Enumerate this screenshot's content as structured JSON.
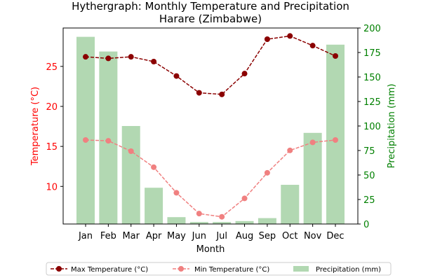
{
  "chart_data": {
    "type": "bar",
    "title": "Hythergraph: Monthly Temperature and Precipitation",
    "subtitle": "Harare (Zimbabwe)",
    "xlabel": "Month",
    "ylabel_left": "Temperature (°C)",
    "ylabel_right": "Precipitation (mm)",
    "categories": [
      "Jan",
      "Feb",
      "Mar",
      "Apr",
      "May",
      "Jun",
      "Jul",
      "Aug",
      "Sep",
      "Oct",
      "Nov",
      "Dec"
    ],
    "y_left_ticks": [
      "10",
      "15",
      "20",
      "25"
    ],
    "y_right_ticks": [
      "0",
      "25",
      "50",
      "75",
      "100",
      "125",
      "150",
      "175",
      "200"
    ],
    "ylim_left": [
      5.3,
      29.8
    ],
    "ylim_right": [
      0,
      200
    ],
    "grid": false,
    "legend_position": "bottom",
    "series": [
      {
        "name": "Precipitation (mm)",
        "type": "bar",
        "axis": "right",
        "color": "#b2d8b2",
        "values": [
          191,
          176,
          100,
          37,
          7,
          2,
          2,
          3,
          6,
          40,
          93,
          183
        ]
      },
      {
        "name": "Max Temperature (°C)",
        "type": "line",
        "axis": "left",
        "color": "#8b0000",
        "values": [
          26.2,
          26.0,
          26.2,
          25.6,
          23.8,
          21.7,
          21.5,
          24.1,
          28.4,
          28.8,
          27.6,
          26.3
        ]
      },
      {
        "name": "Min Temperature (°C)",
        "type": "line",
        "axis": "left",
        "color": "#f08080",
        "values": [
          15.8,
          15.7,
          14.4,
          12.4,
          9.2,
          6.6,
          6.2,
          8.5,
          11.7,
          14.5,
          15.5,
          15.8
        ]
      }
    ]
  }
}
